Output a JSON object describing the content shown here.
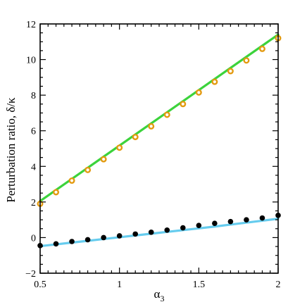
{
  "chart_data": {
    "type": "scatter",
    "xlabel": "α",
    "xlabel_sub": "3",
    "ylabel": "Perturbation ratio, δ/κ",
    "xlim": [
      0.5,
      2
    ],
    "ylim": [
      -2,
      12
    ],
    "x_ticks": [
      0.5,
      1,
      1.5,
      2
    ],
    "x_tick_labels": [
      "0.5",
      "1",
      "1.5",
      "2"
    ],
    "y_ticks": [
      -2,
      0,
      2,
      4,
      6,
      8,
      10,
      12
    ],
    "y_tick_labels": [
      "−2",
      "0",
      "2",
      "4",
      "6",
      "8",
      "10",
      "12"
    ],
    "grid": false,
    "series": [
      {
        "kind": "line",
        "color": "#3cd33c",
        "x": [
          0.5,
          2.0
        ],
        "y": [
          2.05,
          11.4
        ]
      },
      {
        "kind": "points",
        "color": "#e39a10",
        "marker": "open-circle",
        "x": [
          0.5,
          0.6,
          0.7,
          0.8,
          0.9,
          1.0,
          1.1,
          1.2,
          1.3,
          1.4,
          1.5,
          1.6,
          1.7,
          1.8,
          1.9,
          2.0
        ],
        "y": [
          1.9,
          2.55,
          3.2,
          3.8,
          4.4,
          5.05,
          5.65,
          6.25,
          6.9,
          7.5,
          8.15,
          8.75,
          9.35,
          9.95,
          10.6,
          11.2
        ]
      },
      {
        "kind": "line",
        "color": "#66ccee",
        "x": [
          0.5,
          0.6,
          0.7,
          0.8,
          0.9,
          1.0,
          1.1,
          1.2,
          1.3,
          1.4,
          1.5,
          1.6,
          1.7,
          1.8,
          1.9,
          2.0
        ],
        "y": [
          -0.48,
          -0.38,
          -0.28,
          -0.18,
          -0.08,
          0.02,
          0.12,
          0.22,
          0.32,
          0.42,
          0.52,
          0.62,
          0.73,
          0.84,
          0.95,
          1.06
        ]
      },
      {
        "kind": "points",
        "color": "#000000",
        "marker": "filled-circle",
        "x": [
          0.5,
          0.6,
          0.7,
          0.8,
          0.9,
          1.0,
          1.1,
          1.2,
          1.3,
          1.4,
          1.5,
          1.6,
          1.7,
          1.8,
          1.9,
          2.0
        ],
        "y": [
          -0.45,
          -0.35,
          -0.22,
          -0.12,
          0.0,
          0.1,
          0.2,
          0.3,
          0.42,
          0.55,
          0.68,
          0.8,
          0.9,
          1.0,
          1.1,
          1.25
        ]
      }
    ]
  }
}
